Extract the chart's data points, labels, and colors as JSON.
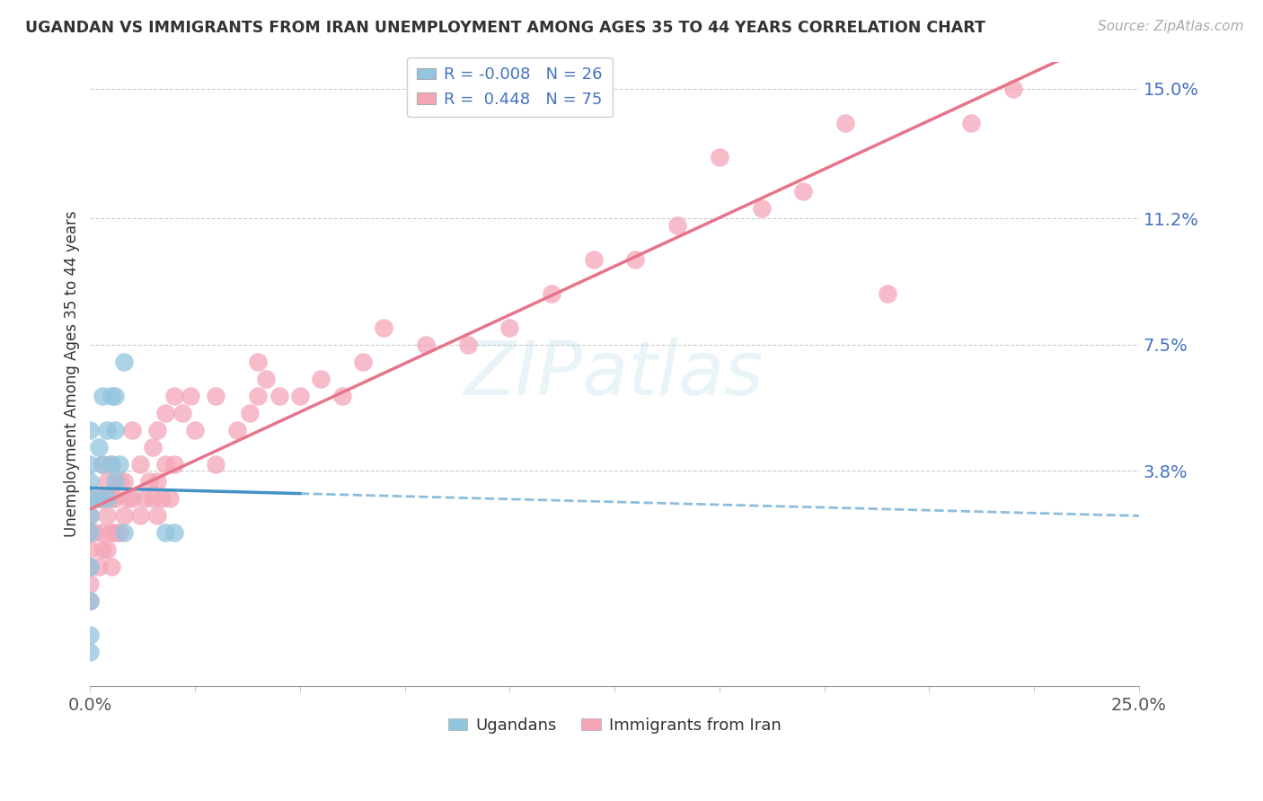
{
  "title": "UGANDAN VS IMMIGRANTS FROM IRAN UNEMPLOYMENT AMONG AGES 35 TO 44 YEARS CORRELATION CHART",
  "source": "Source: ZipAtlas.com",
  "ylabel": "Unemployment Among Ages 35 to 44 years",
  "x_min": 0.0,
  "x_max": 0.25,
  "y_min": -0.025,
  "y_max": 0.158,
  "y_tick_values": [
    0.038,
    0.075,
    0.112,
    0.15
  ],
  "y_tick_labels": [
    "3.8%",
    "7.5%",
    "11.2%",
    "15.0%"
  ],
  "ugandan_color": "#92c5de",
  "iran_color": "#f4a6b8",
  "ugandan_line_color": "#4292c6",
  "iran_line_color": "#e8748a",
  "watermark_text": "ZIPatlas",
  "ugandan_x": [
    0.0,
    0.0,
    0.0,
    0.0,
    0.0,
    0.0,
    0.0,
    0.0,
    0.0,
    0.0,
    0.002,
    0.002,
    0.003,
    0.003,
    0.004,
    0.004,
    0.005,
    0.005,
    0.006,
    0.006,
    0.006,
    0.007,
    0.008,
    0.008,
    0.018,
    0.02
  ],
  "ugandan_y": [
    0.0,
    0.01,
    0.02,
    0.025,
    0.03,
    0.035,
    0.04,
    0.05,
    -0.01,
    -0.015,
    0.03,
    0.045,
    0.04,
    0.06,
    0.03,
    0.05,
    0.04,
    0.06,
    0.035,
    0.05,
    0.06,
    0.04,
    0.02,
    0.07,
    0.02,
    0.02
  ],
  "iran_x": [
    0.0,
    0.0,
    0.0,
    0.0,
    0.0,
    0.0,
    0.0,
    0.001,
    0.002,
    0.002,
    0.003,
    0.003,
    0.003,
    0.003,
    0.004,
    0.004,
    0.004,
    0.005,
    0.005,
    0.005,
    0.005,
    0.006,
    0.006,
    0.007,
    0.007,
    0.008,
    0.008,
    0.009,
    0.01,
    0.01,
    0.012,
    0.012,
    0.013,
    0.014,
    0.015,
    0.015,
    0.016,
    0.016,
    0.016,
    0.017,
    0.018,
    0.018,
    0.019,
    0.02,
    0.02,
    0.022,
    0.024,
    0.025,
    0.03,
    0.03,
    0.035,
    0.038,
    0.04,
    0.04,
    0.042,
    0.045,
    0.05,
    0.055,
    0.06,
    0.065,
    0.07,
    0.08,
    0.09,
    0.1,
    0.11,
    0.12,
    0.13,
    0.14,
    0.15,
    0.16,
    0.17,
    0.18,
    0.19,
    0.21,
    0.22
  ],
  "iran_y": [
    0.0,
    0.005,
    0.01,
    0.015,
    0.02,
    0.025,
    0.03,
    0.02,
    0.01,
    0.03,
    0.015,
    0.02,
    0.03,
    0.04,
    0.015,
    0.025,
    0.035,
    0.01,
    0.02,
    0.03,
    0.04,
    0.02,
    0.03,
    0.02,
    0.035,
    0.025,
    0.035,
    0.03,
    0.03,
    0.05,
    0.025,
    0.04,
    0.03,
    0.035,
    0.03,
    0.045,
    0.025,
    0.035,
    0.05,
    0.03,
    0.04,
    0.055,
    0.03,
    0.04,
    0.06,
    0.055,
    0.06,
    0.05,
    0.04,
    0.06,
    0.05,
    0.055,
    0.06,
    0.07,
    0.065,
    0.06,
    0.06,
    0.065,
    0.06,
    0.07,
    0.08,
    0.075,
    0.075,
    0.08,
    0.09,
    0.1,
    0.1,
    0.11,
    0.13,
    0.115,
    0.12,
    0.14,
    0.09,
    0.14,
    0.15
  ],
  "ugandan_R": -0.008,
  "ugandan_N": 26,
  "iran_R": 0.448,
  "iran_N": 75,
  "legend_r1_text": "R = -0.008",
  "legend_n1_text": "N = 26",
  "legend_r2_text": "R =  0.448",
  "legend_n2_text": "N = 75"
}
